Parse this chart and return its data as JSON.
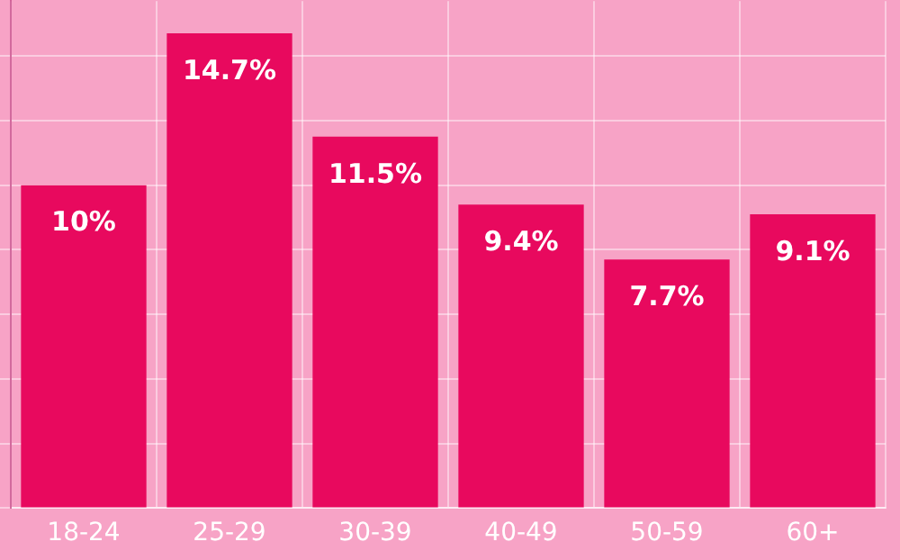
{
  "chart_data": {
    "type": "bar",
    "categories": [
      "18-24",
      "25-29",
      "30-39",
      "40-49",
      "50-59",
      "60+"
    ],
    "values": [
      10,
      14.7,
      11.5,
      9.4,
      7.7,
      9.1
    ],
    "value_labels": [
      "10%",
      "14.7%",
      "11.5%",
      "9.4%",
      "7.7%",
      "9.1%"
    ],
    "color": "#e8095e",
    "ylim": [
      0,
      15.7
    ],
    "yticks": [
      {
        "value": 0,
        "label": null
      },
      {
        "value": 2,
        "label": null
      },
      {
        "value": 4,
        "label": null
      },
      {
        "value": 6,
        "label": null
      },
      {
        "value": 8,
        "label": null
      },
      {
        "value": 10,
        "label": null
      },
      {
        "value": 12,
        "label": null
      },
      {
        "value": 14,
        "label": null
      }
    ],
    "grid": true
  }
}
